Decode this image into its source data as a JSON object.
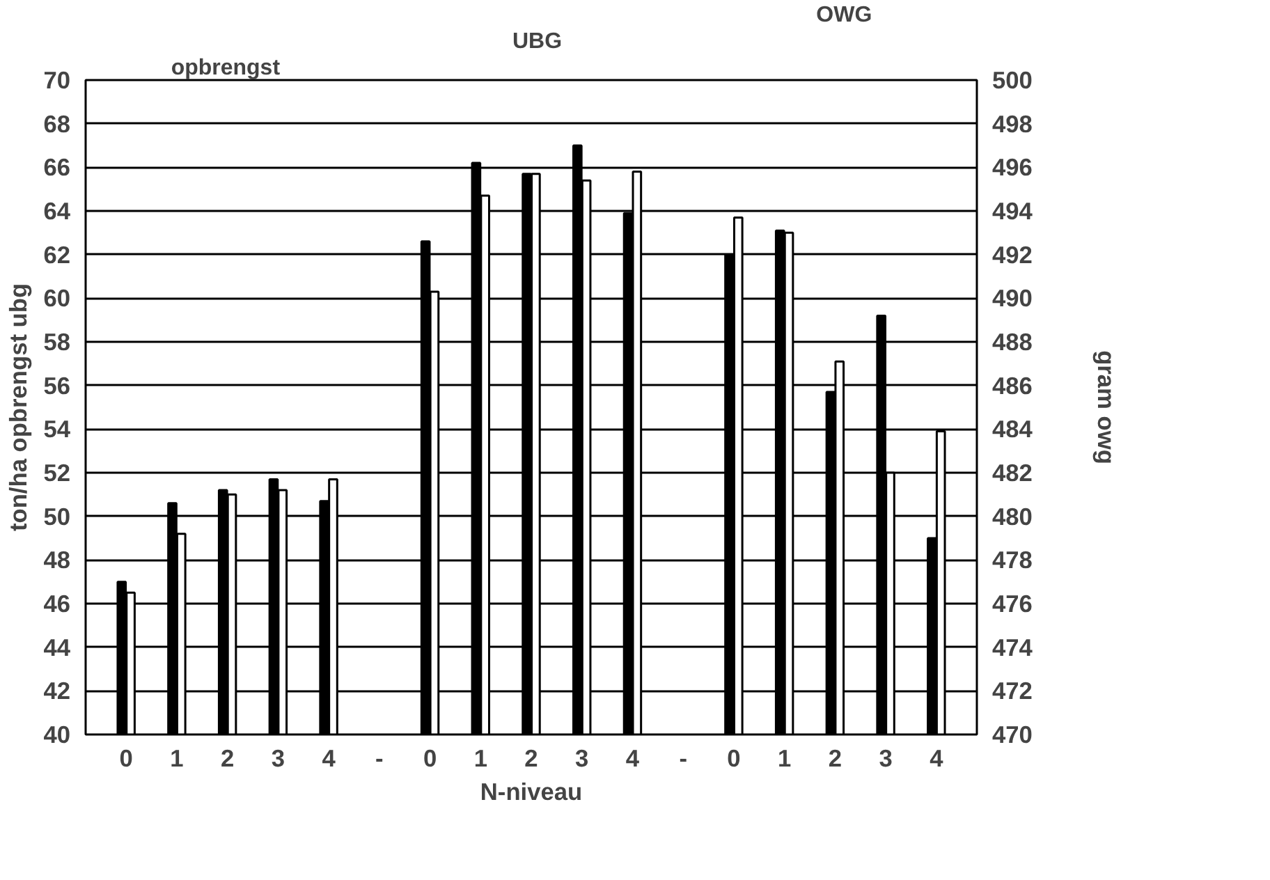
{
  "chart_data": {
    "type": "bar",
    "categories": [
      "0",
      "1",
      "2",
      "3",
      "4",
      "-",
      "0",
      "1",
      "2",
      "3",
      "4",
      "-",
      "0",
      "1",
      "2",
      "3",
      "4"
    ],
    "xlabel": "N-niveau",
    "ylabel": "ton/ha opbrengst ubg",
    "y2label": "gram owg",
    "annotations": [
      "opbrengst",
      "UBG",
      "OWG"
    ],
    "ylim": [
      40,
      70
    ],
    "yticks": [
      40,
      42,
      44,
      46,
      48,
      50,
      52,
      54,
      56,
      58,
      60,
      62,
      64,
      66,
      68,
      70
    ],
    "y2lim": [
      470,
      500
    ],
    "y2ticks": [
      470,
      472,
      474,
      476,
      478,
      480,
      482,
      484,
      486,
      488,
      490,
      492,
      494,
      496,
      498,
      500
    ],
    "grid": "y",
    "series": [
      {
        "color": "#000000",
        "values": [
          47.0,
          50.6,
          51.2,
          51.7,
          50.7,
          null,
          62.6,
          66.2,
          65.7,
          67.0,
          63.9,
          null,
          null,
          null,
          null,
          null,
          null
        ]
      },
      {
        "color": "#ffffff",
        "values": [
          46.5,
          49.2,
          51.0,
          51.2,
          51.7,
          null,
          60.3,
          64.7,
          65.7,
          65.4,
          65.8,
          null,
          null,
          null,
          null,
          null,
          null
        ]
      },
      {
        "color": "#000000",
        "axis": "y2",
        "values": [
          null,
          null,
          null,
          null,
          null,
          null,
          null,
          null,
          null,
          null,
          null,
          null,
          492.0,
          493.1,
          485.7,
          489.2,
          479.0
        ]
      },
      {
        "color": "#ffffff",
        "axis": "y2",
        "values": [
          null,
          null,
          null,
          null,
          null,
          null,
          null,
          null,
          null,
          null,
          null,
          null,
          493.7,
          493.0,
          487.1,
          482.0,
          483.9
        ]
      }
    ]
  }
}
